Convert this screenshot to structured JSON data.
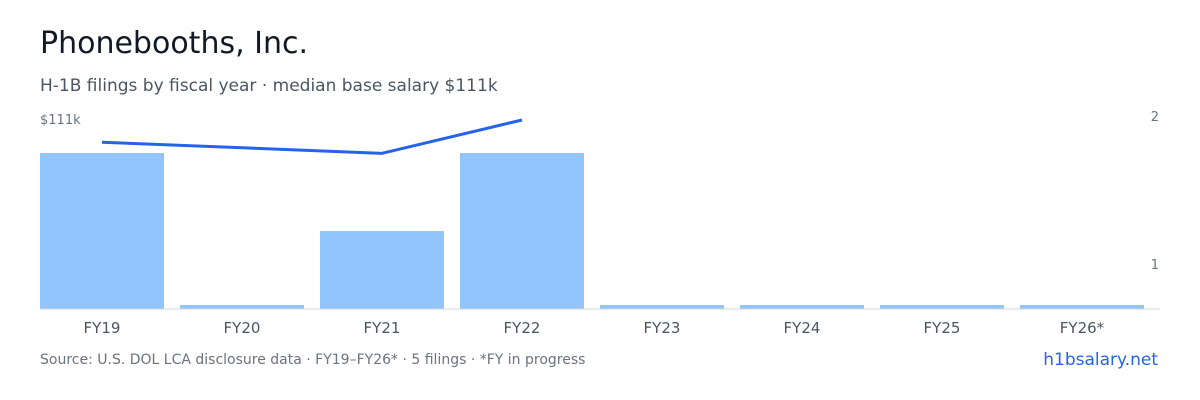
{
  "header": {
    "title": "Phonebooths, Inc.",
    "subtitle": "H-1B filings by fiscal year · median base salary $111k"
  },
  "footer": {
    "source": "Source: U.S. DOL LCA disclosure data · FY19–FY26* · 5 filings · *FY in progress",
    "brand": "h1bsalary.net"
  },
  "colors": {
    "bar": "#93c5fd",
    "line": "#2563eb",
    "baseline": "#d1d5db"
  },
  "chart_data": {
    "type": "bar",
    "categories": [
      "FY19",
      "FY20",
      "FY21",
      "FY22",
      "FY23",
      "FY24",
      "FY25",
      "FY26*"
    ],
    "series": [
      {
        "type": "bar",
        "axis": "right",
        "values": [
          2,
          0,
          1,
          2,
          0,
          0,
          0,
          0
        ]
      },
      {
        "type": "line",
        "axis": "left",
        "values": [
          109000,
          null,
          108000,
          111000,
          null,
          null,
          null,
          null
        ]
      }
    ],
    "right_axis": {
      "ticks": [
        1,
        2
      ],
      "tick_labels": [
        "1",
        "2"
      ],
      "ylim": [
        0,
        2.55
      ]
    },
    "left_axis": {
      "tick_labels": [
        "$111k"
      ],
      "ylim": [
        94000,
        111000
      ]
    },
    "grid": false,
    "legend": "none"
  }
}
